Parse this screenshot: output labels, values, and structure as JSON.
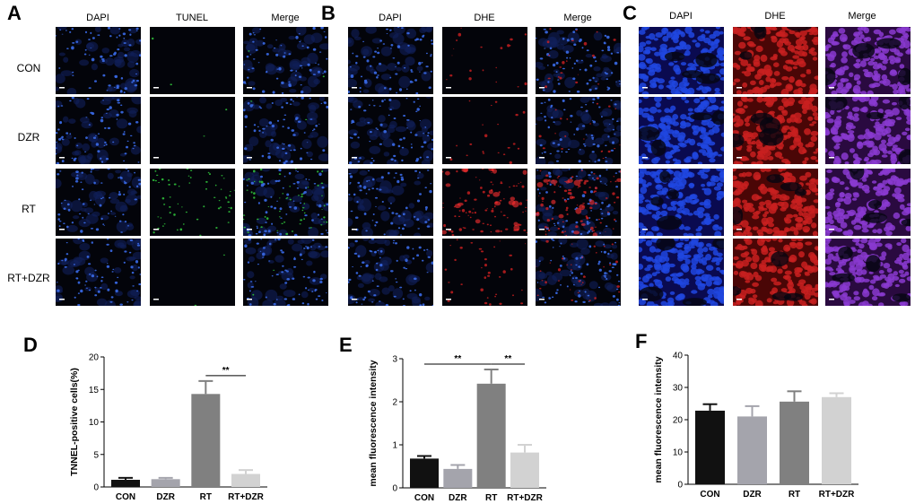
{
  "panel_letters": {
    "A": "A",
    "B": "B",
    "C": "C",
    "D": "D",
    "E": "E",
    "F": "F"
  },
  "panel_a": {
    "columns": [
      "DAPI",
      "TUNEL",
      "Merge"
    ],
    "rows": [
      "CON",
      "DZR",
      "RT",
      "RT+DZR"
    ]
  },
  "panel_b": {
    "columns": [
      "DAPI",
      "DHE",
      "Merge"
    ]
  },
  "panel_c": {
    "columns": [
      "DAPI",
      "DHE",
      "Merge"
    ]
  },
  "colors": {
    "dapi": "#1a3a9e",
    "tunel": "#2fbf3a",
    "dhe": "#c01818",
    "merge_c": "#7a2fb0",
    "bar_con": "#111111",
    "bar_dzr": "#a4a4ac",
    "bar_rt": "#808080",
    "bar_rtdzr": "#d2d2d2"
  },
  "chart_data": [
    {
      "type": "bar",
      "panel": "D",
      "categories": [
        "CON",
        "DZR",
        "RT",
        "RT+DZR"
      ],
      "values": [
        1.1,
        1.2,
        14.3,
        2.0
      ],
      "errors": [
        0.3,
        0.2,
        2.0,
        0.6
      ],
      "ylabel": "TNNEL-positive cells(%)",
      "ylim": [
        0,
        20
      ],
      "yticks": [
        "0",
        "5",
        "10",
        "15",
        "20"
      ],
      "significance": [
        {
          "from": "RT",
          "to": "RT+DZR",
          "label": "**"
        }
      ]
    },
    {
      "type": "bar",
      "panel": "E",
      "categories": [
        "CON",
        "DZR",
        "RT",
        "RT+DZR"
      ],
      "values": [
        0.68,
        0.44,
        2.42,
        0.82
      ],
      "errors": [
        0.06,
        0.09,
        0.33,
        0.18
      ],
      "ylabel": "mean fluorescence intensity",
      "ylim": [
        0,
        3
      ],
      "yticks": [
        "0",
        "1",
        "2",
        "3"
      ],
      "significance": [
        {
          "from": "CON",
          "to": "RT",
          "label": "**"
        },
        {
          "from": "RT",
          "to": "RT+DZR",
          "label": "**"
        }
      ]
    },
    {
      "type": "bar",
      "panel": "F",
      "categories": [
        "CON",
        "DZR",
        "RT",
        "RT+DZR"
      ],
      "values": [
        22.8,
        21.0,
        25.6,
        27.0
      ],
      "errors": [
        2.0,
        3.2,
        3.2,
        1.2
      ],
      "ylabel": "mean fluorescence intensity",
      "ylim": [
        0,
        40
      ],
      "yticks": [
        "0",
        "10",
        "20",
        "30",
        "40"
      ],
      "significance": []
    }
  ]
}
